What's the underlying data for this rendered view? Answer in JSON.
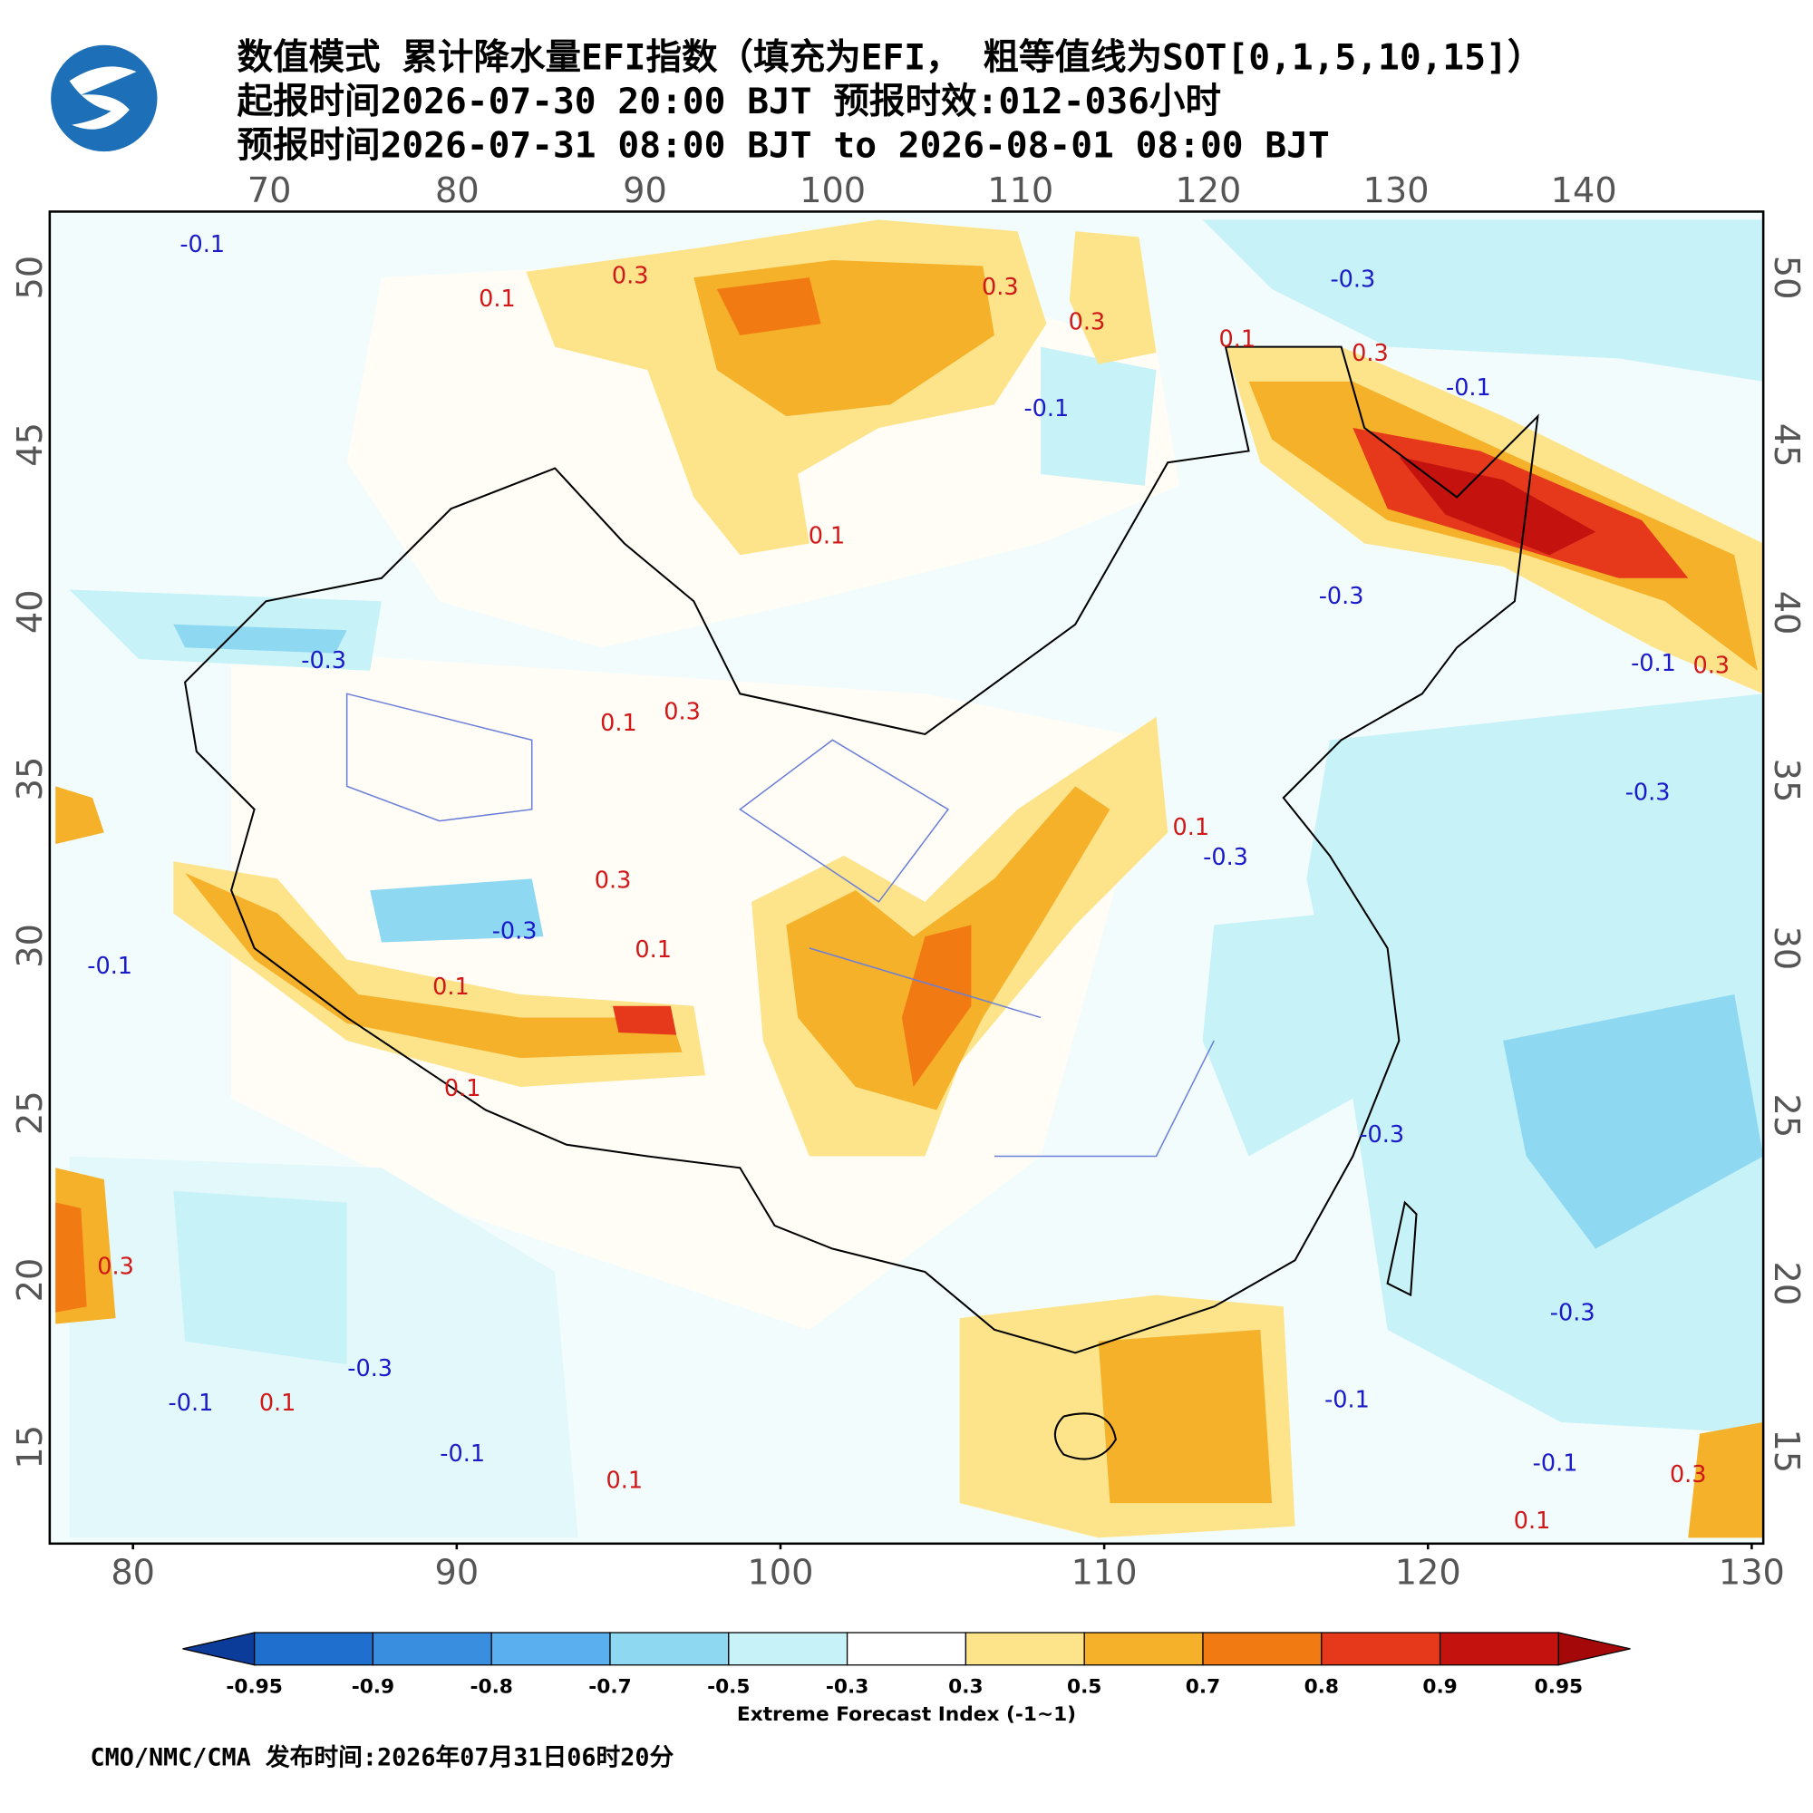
{
  "header": {
    "title_lines": [
      "数值模式 累计降水量EFI指数（填充为EFI， 粗等值线为SOT[0,1,5,10,15]）",
      "起报时间2026-07-30 20:00 BJT 预报时效:012-036小时",
      "预报时间2026-07-31 08:00 BJT to 2026-08-01 08:00 BJT"
    ]
  },
  "map": {
    "top_lon_ticks": [
      70,
      80,
      90,
      100,
      110,
      120,
      130,
      140
    ],
    "bottom_lon_ticks": [
      80,
      90,
      100,
      110,
      120,
      130
    ],
    "left_lat_ticks": [
      50,
      45,
      40,
      35,
      30,
      25,
      20,
      15
    ],
    "right_lat_ticks": [
      50,
      45,
      40,
      35,
      30,
      25,
      20,
      15
    ],
    "contour_labels": [
      "-0.1",
      "0.3",
      "0.1",
      "0.3",
      "0.3",
      "-0.3",
      "0.3",
      "0.1",
      "-0.1",
      "-0.1",
      "0.1",
      "-0.3",
      "-0.3",
      "0.1",
      "0.3",
      "-0.1",
      "0.3",
      "-0.3",
      "0.3",
      "-0.3",
      "0.1",
      "-0.3",
      "0.1",
      "0.1",
      "-0.1",
      "0.1",
      "-0.3",
      "0.3",
      "-0.3",
      "-0.1",
      "0.1",
      "-0.1",
      "0.1",
      "-0.3",
      "-0.1",
      "-0.1",
      "0.3",
      "0.1"
    ]
  },
  "colorbar": {
    "levels": [
      -0.95,
      -0.9,
      -0.8,
      -0.7,
      -0.5,
      -0.3,
      0.3,
      0.5,
      0.7,
      0.8,
      0.9,
      0.95
    ],
    "colors": [
      "#0c3c9a",
      "#1e6fce",
      "#3a8ee0",
      "#5ab0ee",
      "#8ed8f2",
      "#c6f2f8",
      "#ffffff",
      "#fde48a",
      "#f5b12a",
      "#f17a12",
      "#e6381a",
      "#c4120e",
      "#a50808"
    ],
    "label": "Extreme Forecast Index (-1~1)"
  },
  "footer": {
    "text": "CMO/NMC/CMA 发布时间:2026年07月31日06时20分"
  }
}
